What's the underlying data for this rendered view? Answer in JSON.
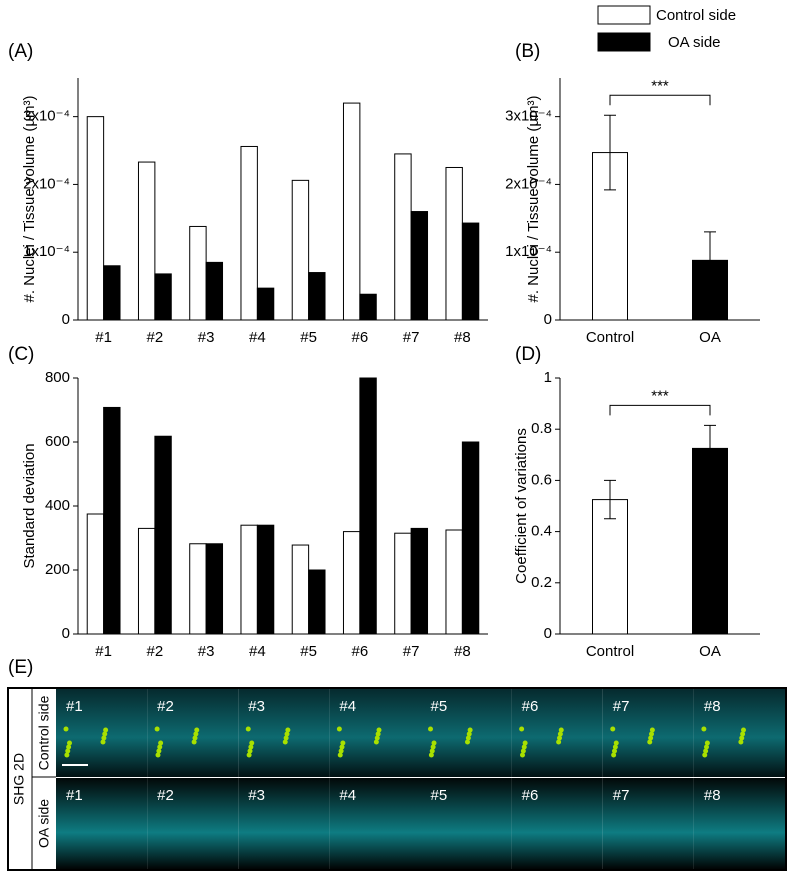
{
  "chart_data": [
    {
      "type": "bar",
      "panel_label": "(A)",
      "ylabel": "#. Nuclei / Tissue volume (µm³)",
      "categories": [
        "#1",
        "#2",
        "#3",
        "#4",
        "#5",
        "#6",
        "#7",
        "#8"
      ],
      "series": [
        {
          "name": "Control side",
          "color": "#ffffff",
          "values": [
            0.0003,
            0.000233,
            0.000138,
            0.000256,
            0.000206,
            0.00032,
            0.000245,
            0.000225
          ]
        },
        {
          "name": "OA side",
          "color": "#000000",
          "values": [
            8e-05,
            6.8e-05,
            8.5e-05,
            4.7e-05,
            7e-05,
            3.8e-05,
            0.00016,
            0.000143
          ]
        }
      ],
      "ylim": [
        0,
        0.000357
      ],
      "yticks": [
        0,
        {
          "value": 0.0001,
          "label": "1x10⁻⁴"
        },
        {
          "value": 0.0002,
          "label": "2x10⁻⁴"
        },
        {
          "value": 0.0003,
          "label": "3x10⁻⁴"
        }
      ]
    },
    {
      "type": "bar",
      "panel_label": "(B)",
      "ylabel": "#. Nuclei / Tissue volume (µm³)",
      "categories": [
        "Control",
        "OA"
      ],
      "values": [
        0.000247,
        8.8e-05
      ],
      "errors": [
        5.5e-05,
        4.2e-05
      ],
      "colors": [
        "#ffffff",
        "#000000"
      ],
      "annotation": "***",
      "ylim": [
        0,
        0.000357
      ],
      "yticks": [
        0,
        {
          "value": 0.0001,
          "label": "1x10⁻⁴"
        },
        {
          "value": 0.0002,
          "label": "2x10⁻⁴"
        },
        {
          "value": 0.0003,
          "label": "3x10⁻⁴"
        }
      ]
    },
    {
      "type": "bar",
      "panel_label": "(C)",
      "ylabel": "Standard deviation",
      "categories": [
        "#1",
        "#2",
        "#3",
        "#4",
        "#5",
        "#6",
        "#7",
        "#8"
      ],
      "series": [
        {
          "name": "Control side",
          "color": "#ffffff",
          "values": [
            375,
            330,
            282,
            340,
            278,
            320,
            315,
            325
          ]
        },
        {
          "name": "OA side",
          "color": "#000000",
          "values": [
            708,
            618,
            282,
            340,
            200,
            800,
            330,
            600
          ]
        }
      ],
      "ylim": [
        0,
        800
      ],
      "yticks": [
        0,
        200,
        400,
        600,
        800
      ]
    },
    {
      "type": "bar",
      "panel_label": "(D)",
      "ylabel": "Coefficient of variations",
      "categories": [
        "Control",
        "OA"
      ],
      "values": [
        0.525,
        0.725
      ],
      "errors": [
        0.075,
        0.09
      ],
      "colors": [
        "#ffffff",
        "#000000"
      ],
      "annotation": "***",
      "ylim": [
        0,
        1
      ],
      "yticks": [
        0,
        0.2,
        0.4,
        0.6,
        0.8,
        1
      ]
    }
  ],
  "image_panel": {
    "panel_label": "(E)",
    "row_title": "SHG 2D",
    "rows": [
      {
        "label": "Control side",
        "tiles": [
          "#1",
          "#2",
          "#3",
          "#4",
          "#5",
          "#6",
          "#7",
          "#8"
        ]
      },
      {
        "label": "OA side",
        "tiles": [
          "#1",
          "#2",
          "#3",
          "#4",
          "#5",
          "#6",
          "#7",
          "#8"
        ]
      }
    ]
  }
}
